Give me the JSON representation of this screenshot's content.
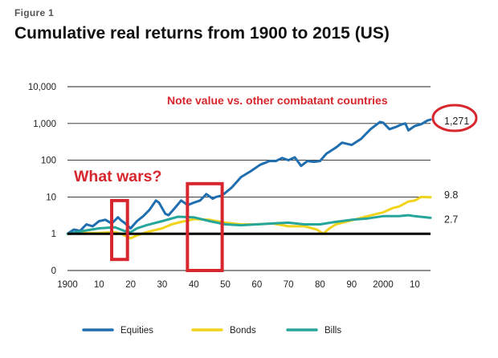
{
  "figure_label": "Figure 1",
  "chart_data": {
    "type": "line",
    "title": "Cumulative real returns from 1900 to 2015",
    "title_suffix": "(US)",
    "xlabel": "",
    "ylabel": "",
    "y_scale": "log",
    "xlim": [
      1900,
      2015
    ],
    "y_ticks": [
      {
        "value": 0.1,
        "label": "0"
      },
      {
        "value": 1,
        "label": "1"
      },
      {
        "value": 10,
        "label": "10"
      },
      {
        "value": 100,
        "label": "100"
      },
      {
        "value": 1000,
        "label": "1,000"
      },
      {
        "value": 10000,
        "label": "10,000"
      }
    ],
    "x_ticks": [
      {
        "value": 1900,
        "label": "1900"
      },
      {
        "value": 1910,
        "label": "10"
      },
      {
        "value": 1920,
        "label": "20"
      },
      {
        "value": 1930,
        "label": "30"
      },
      {
        "value": 1940,
        "label": "40"
      },
      {
        "value": 1950,
        "label": "50"
      },
      {
        "value": 1960,
        "label": "60"
      },
      {
        "value": 1970,
        "label": "70"
      },
      {
        "value": 1980,
        "label": "80"
      },
      {
        "value": 1990,
        "label": "90"
      },
      {
        "value": 2000,
        "label": "2000"
      },
      {
        "value": 2010,
        "label": "10"
      }
    ],
    "baseline_value": 1,
    "grid": "horizontal",
    "legend_position": "bottom",
    "series": [
      {
        "name": "Equities",
        "color": "#1f6fb0",
        "end_label": "1,271",
        "x": [
          1900,
          1902,
          1904,
          1906,
          1908,
          1910,
          1912,
          1914,
          1916,
          1917,
          1918,
          1920,
          1922,
          1924,
          1926,
          1928,
          1929,
          1931,
          1932,
          1934,
          1936,
          1937,
          1938,
          1940,
          1942,
          1944,
          1946,
          1947,
          1949,
          1952,
          1955,
          1958,
          1961,
          1964,
          1966,
          1968,
          1970,
          1972,
          1974,
          1976,
          1978,
          1980,
          1982,
          1985,
          1987,
          1990,
          1993,
          1996,
          1999,
          2000,
          2002,
          2004,
          2006,
          2007,
          2008,
          2010,
          2012,
          2014,
          2015
        ],
        "y": [
          1,
          1.3,
          1.2,
          1.8,
          1.6,
          2.2,
          2.4,
          1.9,
          2.8,
          2.3,
          2.0,
          1.4,
          2.2,
          3.0,
          4.5,
          8,
          7,
          3.5,
          3.2,
          5,
          8,
          7,
          6,
          7,
          8,
          12,
          9,
          10,
          11,
          18,
          35,
          50,
          75,
          95,
          95,
          115,
          100,
          120,
          70,
          95,
          90,
          95,
          150,
          220,
          300,
          260,
          380,
          700,
          1100,
          1050,
          700,
          800,
          950,
          1000,
          650,
          850,
          950,
          1200,
          1271
        ]
      },
      {
        "name": "Bonds",
        "color": "#f0d31a",
        "end_label": "9.8",
        "x": [
          1900,
          1905,
          1910,
          1915,
          1917,
          1920,
          1922,
          1925,
          1930,
          1933,
          1935,
          1940,
          1945,
          1950,
          1955,
          1960,
          1965,
          1970,
          1975,
          1979,
          1981,
          1983,
          1985,
          1990,
          1995,
          2000,
          2003,
          2005,
          2008,
          2010,
          2012,
          2015
        ],
        "y": [
          1,
          1.05,
          1.05,
          1.1,
          1.0,
          0.75,
          0.9,
          1.1,
          1.4,
          1.8,
          2.0,
          2.5,
          2.4,
          2.0,
          1.8,
          1.8,
          1.9,
          1.6,
          1.6,
          1.3,
          1.0,
          1.4,
          1.8,
          2.3,
          3.0,
          3.8,
          5.0,
          5.5,
          7.5,
          8.0,
          10.0,
          9.8
        ]
      },
      {
        "name": "Bills",
        "color": "#26a69a",
        "end_label": "2.7",
        "x": [
          1900,
          1905,
          1910,
          1915,
          1918,
          1920,
          1922,
          1925,
          1930,
          1935,
          1940,
          1945,
          1950,
          1955,
          1960,
          1965,
          1970,
          1975,
          1980,
          1985,
          1990,
          1995,
          2000,
          2005,
          2008,
          2010,
          2015
        ],
        "y": [
          1,
          1.2,
          1.4,
          1.5,
          1.2,
          1.1,
          1.4,
          1.7,
          2.2,
          2.9,
          2.8,
          2.2,
          1.8,
          1.7,
          1.8,
          1.9,
          2.0,
          1.8,
          1.8,
          2.1,
          2.4,
          2.6,
          3.0,
          3.0,
          3.2,
          3.0,
          2.7
        ]
      }
    ],
    "annotations": [
      {
        "text": "Note value vs. other combatant countries"
      },
      {
        "text": "What wars?"
      }
    ],
    "highlight_boxes": [
      {
        "x0": 1914,
        "x1": 1919,
        "y0": 0.2,
        "y1": 8
      },
      {
        "x0": 1938,
        "x1": 1949,
        "y0": 0.1,
        "y1": 23
      }
    ]
  }
}
